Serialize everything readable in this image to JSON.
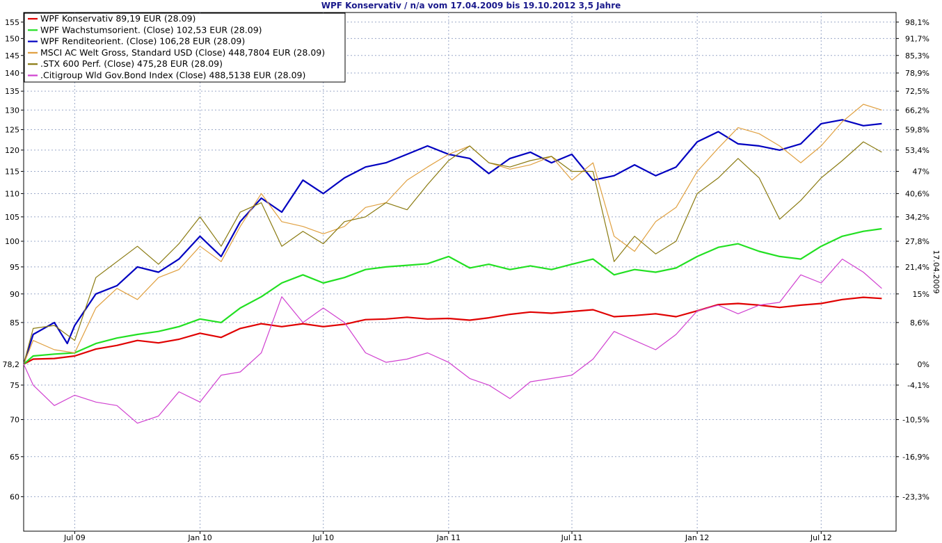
{
  "chart_data": {
    "type": "line",
    "title": "WPF Konservativ / n/a vom 17.04.2009 bis 19.10.2012 3,5 Jahre",
    "right_axis_label": "17.04.2009",
    "base_value": 78.2,
    "base_label": "78,2",
    "y_log": true,
    "ylim": [
      56,
      158
    ],
    "xlim": [
      "2009-04-17",
      "2012-10-19"
    ],
    "grid": true,
    "legend_position": "top-left",
    "y_ticks": [
      60,
      65,
      70,
      75,
      85,
      90,
      95,
      100,
      105,
      110,
      115,
      120,
      125,
      130,
      135,
      140,
      145,
      150,
      155
    ],
    "y_tick_labels": [
      "60",
      "65",
      "70",
      "75",
      "85",
      "90",
      "95",
      "100",
      "105",
      "110",
      "115",
      "120",
      "125",
      "130",
      "135",
      "140",
      "145",
      "150",
      "155"
    ],
    "y2_ticks": [
      {
        "value": 60.0,
        "label": "-23,3%"
      },
      {
        "value": 65.0,
        "label": "-16,9%"
      },
      {
        "value": 70.0,
        "label": "-10,5%"
      },
      {
        "value": 75.0,
        "label": "-4,1%"
      },
      {
        "value": 78.2,
        "label": "0%"
      },
      {
        "value": 85.0,
        "label": "8,6%"
      },
      {
        "value": 90.0,
        "label": "15%"
      },
      {
        "value": 95.0,
        "label": "21,4%"
      },
      {
        "value": 100.0,
        "label": "27,8%"
      },
      {
        "value": 105.0,
        "label": "34,2%"
      },
      {
        "value": 110.0,
        "label": "40,6%"
      },
      {
        "value": 115.0,
        "label": "47%"
      },
      {
        "value": 120.0,
        "label": "53,4%"
      },
      {
        "value": 125.0,
        "label": "59,8%"
      },
      {
        "value": 130.0,
        "label": "66,2%"
      },
      {
        "value": 135.0,
        "label": "72,5%"
      },
      {
        "value": 140.0,
        "label": "78,9%"
      },
      {
        "value": 145.0,
        "label": "85,3%"
      },
      {
        "value": 150.0,
        "label": "91,7%"
      },
      {
        "value": 155.0,
        "label": "98,1%"
      }
    ],
    "x_ticks": [
      {
        "date": "2009-07-01",
        "label": "Jul 09"
      },
      {
        "date": "2010-01-01",
        "label": "Jan 10"
      },
      {
        "date": "2010-07-01",
        "label": "Jul 10"
      },
      {
        "date": "2011-01-01",
        "label": "Jan 11"
      },
      {
        "date": "2011-07-01",
        "label": "Jul 11"
      },
      {
        "date": "2012-01-01",
        "label": "Jan 12"
      },
      {
        "date": "2012-07-01",
        "label": "Jul 12"
      }
    ],
    "series": [
      {
        "name": "WPF Konservativ 89,19 EUR (28.09)",
        "color": "#e00000",
        "width": 2.2,
        "x": [
          "2009-04-17",
          "2009-05-01",
          "2009-06-01",
          "2009-07-01",
          "2009-08-01",
          "2009-09-01",
          "2009-10-01",
          "2009-11-01",
          "2009-12-01",
          "2010-01-01",
          "2010-02-01",
          "2010-03-01",
          "2010-04-01",
          "2010-05-01",
          "2010-06-01",
          "2010-07-01",
          "2010-08-01",
          "2010-09-01",
          "2010-10-01",
          "2010-11-01",
          "2010-12-01",
          "2011-01-01",
          "2011-02-01",
          "2011-03-01",
          "2011-04-01",
          "2011-05-01",
          "2011-06-01",
          "2011-07-01",
          "2011-08-01",
          "2011-09-01",
          "2011-10-01",
          "2011-11-01",
          "2011-12-01",
          "2012-01-01",
          "2012-02-01",
          "2012-03-01",
          "2012-04-01",
          "2012-05-01",
          "2012-06-01",
          "2012-07-01",
          "2012-08-01",
          "2012-09-01",
          "2012-09-28"
        ],
        "y": [
          78.2,
          79.0,
          79.1,
          79.5,
          80.6,
          81.2,
          82.0,
          81.6,
          82.2,
          83.2,
          82.5,
          84.0,
          84.8,
          84.3,
          84.8,
          84.3,
          84.7,
          85.5,
          85.6,
          85.9,
          85.6,
          85.7,
          85.4,
          85.8,
          86.4,
          86.8,
          86.6,
          86.9,
          87.2,
          86.0,
          86.2,
          86.5,
          86.0,
          87.0,
          88.1,
          88.3,
          88.0,
          87.6,
          88.0,
          88.3,
          89.0,
          89.4,
          89.19
        ]
      },
      {
        "name": "WPF Wachstumsorient. (Close) 102,53 EUR (28.09)",
        "color": "#22e022",
        "width": 2.2,
        "x": [
          "2009-04-17",
          "2009-05-01",
          "2009-06-01",
          "2009-07-01",
          "2009-08-01",
          "2009-09-01",
          "2009-10-01",
          "2009-11-01",
          "2009-12-01",
          "2010-01-01",
          "2010-02-01",
          "2010-03-01",
          "2010-04-01",
          "2010-05-01",
          "2010-06-01",
          "2010-07-01",
          "2010-08-01",
          "2010-09-01",
          "2010-10-01",
          "2010-11-01",
          "2010-12-01",
          "2011-01-01",
          "2011-02-01",
          "2011-03-01",
          "2011-04-01",
          "2011-05-01",
          "2011-06-01",
          "2011-07-01",
          "2011-08-01",
          "2011-09-01",
          "2011-10-01",
          "2011-11-01",
          "2011-12-01",
          "2012-01-01",
          "2012-02-01",
          "2012-03-01",
          "2012-04-01",
          "2012-05-01",
          "2012-06-01",
          "2012-07-01",
          "2012-08-01",
          "2012-09-01",
          "2012-09-28"
        ],
        "y": [
          78.2,
          79.5,
          79.8,
          80.0,
          81.5,
          82.4,
          83.0,
          83.5,
          84.3,
          85.6,
          85.0,
          87.5,
          89.5,
          92.0,
          93.5,
          92.0,
          93.0,
          94.5,
          95.0,
          95.3,
          95.6,
          97.0,
          94.8,
          95.5,
          94.5,
          95.2,
          94.5,
          95.5,
          96.5,
          93.5,
          94.5,
          94.0,
          94.8,
          97.0,
          98.8,
          99.5,
          98.0,
          97.0,
          96.5,
          99.0,
          101.0,
          102.0,
          102.53
        ]
      },
      {
        "name": "WPF Renditeorient. (Close) 106,28 EUR (28.09)",
        "color": "#0000c0",
        "width": 2.2,
        "x": [
          "2009-04-17",
          "2009-05-01",
          "2009-06-01",
          "2009-06-20",
          "2009-07-01",
          "2009-08-01",
          "2009-09-01",
          "2009-10-01",
          "2009-11-01",
          "2009-12-01",
          "2010-01-01",
          "2010-02-01",
          "2010-03-01",
          "2010-04-01",
          "2010-05-01",
          "2010-06-01",
          "2010-07-01",
          "2010-08-01",
          "2010-09-01",
          "2010-10-01",
          "2010-11-01",
          "2010-12-01",
          "2011-01-01",
          "2011-02-01",
          "2011-03-01",
          "2011-04-01",
          "2011-05-01",
          "2011-06-01",
          "2011-07-01",
          "2011-08-01",
          "2011-09-01",
          "2011-10-01",
          "2011-11-01",
          "2011-12-01",
          "2012-01-01",
          "2012-02-01",
          "2012-03-01",
          "2012-04-01",
          "2012-05-01",
          "2012-06-01",
          "2012-07-01",
          "2012-08-01",
          "2012-09-01",
          "2012-09-28"
        ],
        "y": [
          78.2,
          83.0,
          85.0,
          81.5,
          84.5,
          90.0,
          91.5,
          95.0,
          94.0,
          96.5,
          101.0,
          97.0,
          104.0,
          109.0,
          106.0,
          113.0,
          110.0,
          113.5,
          116.0,
          117.0,
          119.0,
          121.0,
          119.0,
          118.0,
          114.5,
          118.0,
          119.5,
          117.0,
          119.0,
          113.0,
          114.0,
          116.5,
          114.0,
          116.0,
          122.0,
          124.5,
          121.5,
          121.0,
          120.0,
          121.5,
          126.5,
          127.5,
          126.0,
          126.5
        ]
      },
      {
        "name": "MSCI AC Welt Gross, Standard USD (Close) 448,7804 EUR (28.09)",
        "color": "#e0a040",
        "width": 1.2,
        "x": [
          "2009-04-17",
          "2009-05-01",
          "2009-06-01",
          "2009-07-01",
          "2009-08-01",
          "2009-09-01",
          "2009-10-01",
          "2009-11-01",
          "2009-12-01",
          "2010-01-01",
          "2010-02-01",
          "2010-03-01",
          "2010-04-01",
          "2010-05-01",
          "2010-06-01",
          "2010-07-01",
          "2010-08-01",
          "2010-09-01",
          "2010-10-01",
          "2010-11-01",
          "2010-12-01",
          "2011-01-01",
          "2011-02-01",
          "2011-03-01",
          "2011-04-01",
          "2011-05-01",
          "2011-06-01",
          "2011-07-01",
          "2011-08-01",
          "2011-09-01",
          "2011-10-01",
          "2011-11-01",
          "2011-12-01",
          "2012-01-01",
          "2012-02-01",
          "2012-03-01",
          "2012-04-01",
          "2012-05-01",
          "2012-06-01",
          "2012-07-01",
          "2012-08-01",
          "2012-09-01",
          "2012-09-28"
        ],
        "y": [
          78.2,
          82.0,
          80.5,
          80.0,
          87.5,
          91.0,
          89.0,
          93.0,
          94.5,
          99.0,
          96.0,
          103.0,
          110.0,
          104.0,
          103.0,
          101.5,
          103.0,
          107.0,
          108.0,
          113.0,
          116.0,
          119.0,
          121.0,
          117.0,
          115.5,
          116.5,
          118.5,
          113.0,
          117.0,
          101.0,
          98.0,
          104.0,
          107.0,
          115.0,
          120.5,
          125.5,
          124.0,
          121.0,
          117.0,
          121.0,
          127.0,
          131.5,
          130.0
        ]
      },
      {
        "name": ".STX 600 Perf. (Close) 475,28 EUR (28.09)",
        "color": "#8a7a10",
        "width": 1.2,
        "x": [
          "2009-04-17",
          "2009-05-01",
          "2009-06-01",
          "2009-07-01",
          "2009-08-01",
          "2009-09-01",
          "2009-10-01",
          "2009-11-01",
          "2009-12-01",
          "2010-01-01",
          "2010-02-01",
          "2010-03-01",
          "2010-04-01",
          "2010-05-01",
          "2010-06-01",
          "2010-07-01",
          "2010-08-01",
          "2010-09-01",
          "2010-10-01",
          "2010-11-01",
          "2010-12-01",
          "2011-01-01",
          "2011-02-01",
          "2011-03-01",
          "2011-04-01",
          "2011-05-01",
          "2011-06-01",
          "2011-07-01",
          "2011-08-01",
          "2011-09-01",
          "2011-10-01",
          "2011-11-01",
          "2011-12-01",
          "2012-01-01",
          "2012-02-01",
          "2012-03-01",
          "2012-04-01",
          "2012-05-01",
          "2012-06-01",
          "2012-07-01",
          "2012-08-01",
          "2012-09-01",
          "2012-09-28"
        ],
        "y": [
          78.2,
          84.0,
          84.5,
          82.0,
          93.0,
          96.0,
          99.0,
          95.5,
          99.5,
          105.0,
          99.0,
          106.0,
          108.0,
          99.0,
          102.0,
          99.5,
          104.0,
          105.0,
          108.0,
          106.5,
          112.0,
          117.5,
          121.0,
          117.0,
          116.0,
          117.5,
          118.5,
          115.0,
          115.0,
          96.0,
          101.0,
          97.5,
          100.0,
          110.0,
          113.5,
          118.0,
          113.5,
          104.5,
          108.5,
          113.5,
          117.5,
          122.0,
          119.5
        ]
      },
      {
        "name": ".Citigroup Wld Gov.Bond Index (Close) 488,5138 EUR (28.09)",
        "color": "#d040d0",
        "width": 1.2,
        "x": [
          "2009-04-17",
          "2009-05-01",
          "2009-06-01",
          "2009-07-01",
          "2009-08-01",
          "2009-09-01",
          "2009-10-01",
          "2009-11-01",
          "2009-12-01",
          "2010-01-01",
          "2010-02-01",
          "2010-03-01",
          "2010-04-01",
          "2010-05-01",
          "2010-06-01",
          "2010-07-01",
          "2010-08-01",
          "2010-09-01",
          "2010-10-01",
          "2010-11-01",
          "2010-12-01",
          "2011-01-01",
          "2011-02-01",
          "2011-03-01",
          "2011-04-01",
          "2011-05-01",
          "2011-06-01",
          "2011-07-01",
          "2011-08-01",
          "2011-09-01",
          "2011-10-01",
          "2011-11-01",
          "2011-12-01",
          "2012-01-01",
          "2012-02-01",
          "2012-03-01",
          "2012-04-01",
          "2012-05-01",
          "2012-06-01",
          "2012-07-01",
          "2012-08-01",
          "2012-09-01",
          "2012-09-28"
        ],
        "y": [
          78.2,
          75.0,
          72.0,
          73.5,
          72.5,
          72.0,
          69.5,
          70.5,
          74.0,
          72.5,
          76.5,
          77.0,
          80.0,
          89.5,
          85.0,
          87.5,
          85.0,
          80.0,
          78.5,
          79.0,
          80.0,
          78.5,
          76.0,
          75.0,
          73.0,
          75.5,
          76.0,
          76.5,
          79.0,
          83.5,
          82.0,
          80.5,
          83.0,
          87.0,
          88.0,
          86.5,
          88.0,
          88.5,
          93.5,
          92.0,
          96.5,
          94.0,
          91.0
        ]
      }
    ]
  }
}
